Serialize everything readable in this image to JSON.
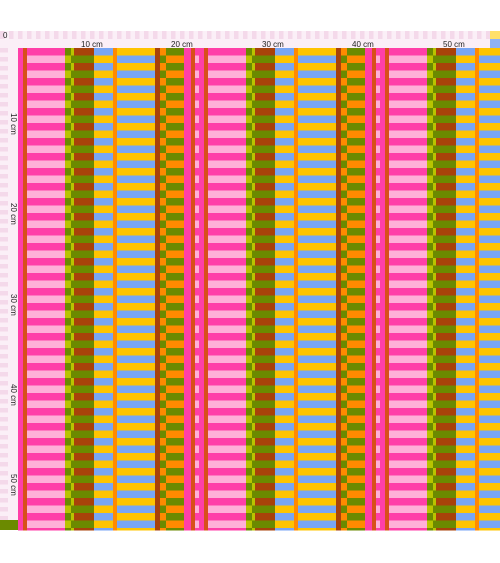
{
  "ruler": {
    "origin": "0",
    "top_labels": [
      "10 cm",
      "20 cm",
      "30 cm",
      "40 cm",
      "50 cm"
    ],
    "side_labels": [
      "10 cm",
      "20 cm",
      "30 cm",
      "40 cm",
      "50 cm"
    ]
  },
  "colors": {
    "pink_hot": "#ff3fa8",
    "pink_light": "#ffb0d8",
    "orange": "#ff8a00",
    "yellow": "#ffc400",
    "blue": "#78a6f5",
    "olive": "#6b8a00",
    "lime": "#b9c400",
    "brown": "#a8420a",
    "rust": "#d8501a",
    "ruler_bg": "#fbeff7",
    "ruler_check": "#f4d9ea",
    "ruler_accent_yellow": "#ffe06a",
    "ruler_accent_blue": "#8fb2f6"
  }
}
